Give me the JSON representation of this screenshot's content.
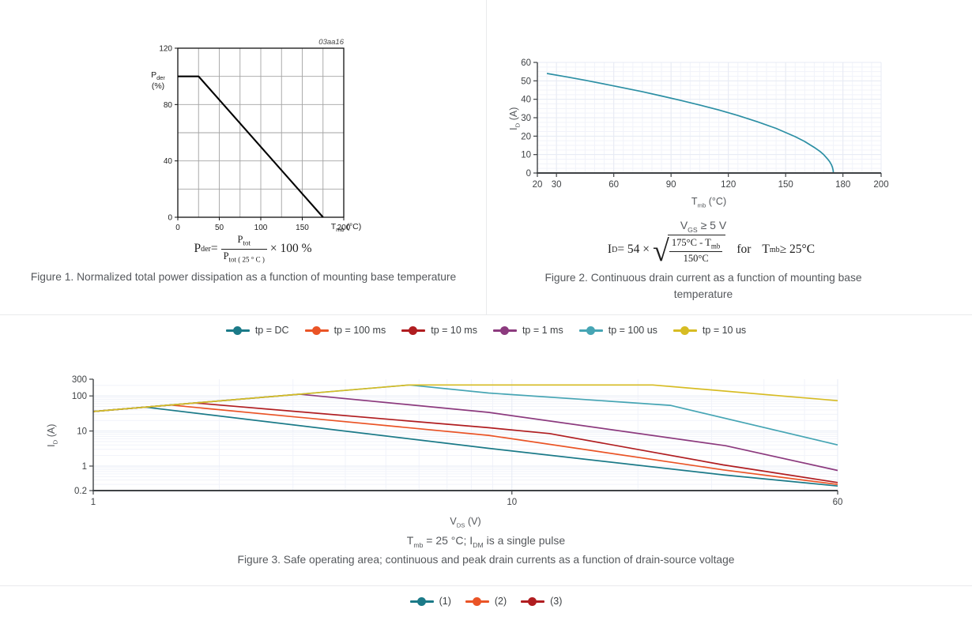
{
  "page": {
    "background": "#ffffff"
  },
  "figure1": {
    "watermark": "03aa16",
    "y_axis": {
      "base": "P",
      "sub": "der",
      "unit": "(%)"
    },
    "x_axis": {
      "base": "T",
      "sub": "mb",
      "unit": " (°C)"
    },
    "formula": {
      "lhs_base": "P",
      "lhs_sub": "der",
      "eq": " = ",
      "num_base": "P",
      "num_sub": "tot",
      "den_base": "P",
      "den_sub": "tot ( 25 ° C )",
      "tail": " × 100 %"
    },
    "caption": "Figure 1. Normalized total power dissipation as a function of mounting base temperature"
  },
  "figure2": {
    "condition": {
      "base": "V",
      "sub": "GS",
      "rest": " ≥ 5 V"
    },
    "formula": {
      "lhs_base": "I",
      "lhs_sub": "D",
      "eq": " = 54 × ",
      "radical": "√",
      "num_pre": "175°C - T",
      "num_sub": "mb",
      "den": "150°C",
      "for_word": "for",
      "cond_base": "T",
      "cond_sub": "mb",
      "cond_rest": " ≥ 25°C"
    },
    "caption": "Figure 2. Continuous drain current as a function of mounting base temperature",
    "x_axis": {
      "base": "T",
      "sub": "mb",
      "unit": " (°C)"
    },
    "y_axis": {
      "base": "I",
      "sub": "D",
      "unit": " (A)"
    }
  },
  "figure3": {
    "legend": [
      {
        "label": "tp = DC",
        "color": "#1b7a88"
      },
      {
        "label": "tp = 100 ms",
        "color": "#ea5426"
      },
      {
        "label": "tp = 10 ms",
        "color": "#b01d20"
      },
      {
        "label": "tp = 1 ms",
        "color": "#8c3a7e"
      },
      {
        "label": "tp = 100 us",
        "color": "#46a5b4"
      },
      {
        "label": "tp = 10 us",
        "color": "#d7bc23"
      }
    ],
    "note": {
      "t_base": "T",
      "t_sub": "mb",
      "mid": " = 25 °C; I",
      "i_sub": "DM",
      "tail": " is a single pulse"
    },
    "caption": "Figure 3. Safe operating area; continuous and peak drain currents as a function of drain-source voltage",
    "x_axis": {
      "base": "V",
      "sub": "DS",
      "unit": " (V)"
    },
    "y_axis": {
      "base": "I",
      "sub": "D",
      "unit": " (A)"
    }
  },
  "figure4": {
    "legend": [
      {
        "label": "(1)",
        "color": "#1b7a88"
      },
      {
        "label": "(2)",
        "color": "#ea5426"
      },
      {
        "label": "(3)",
        "color": "#b01d20"
      }
    ]
  },
  "chart_data": [
    {
      "id": "fig1",
      "type": "line",
      "style": "datasheet",
      "title": "Normalized total power dissipation as a function of mounting base temperature",
      "xlabel": "Tmb (°C)",
      "ylabel": "Pder (%)",
      "xlim": [
        0,
        200
      ],
      "ylim": [
        0,
        120
      ],
      "xticks": [
        0,
        50,
        100,
        150,
        200
      ],
      "yticks": [
        0,
        40,
        80,
        120
      ],
      "grid_x_step": 25,
      "grid_y_step": 20,
      "grid": "on",
      "watermark": "03aa16",
      "series": [
        {
          "name": "Pder",
          "color": "#000000",
          "points": [
            [
              0,
              100
            ],
            [
              25,
              100
            ],
            [
              175,
              0
            ]
          ]
        }
      ]
    },
    {
      "id": "fig2",
      "type": "line",
      "style": "web",
      "title": "Continuous drain current as a function of mounting base temperature",
      "xlabel": "Tmb (°C)",
      "ylabel": "ID (A)",
      "xlim": [
        20,
        200
      ],
      "ylim": [
        0,
        60
      ],
      "xticks": [
        20,
        30,
        60,
        90,
        120,
        150,
        180,
        200
      ],
      "yticks": [
        0,
        10,
        20,
        30,
        40,
        50,
        60
      ],
      "minor_x_step": 5,
      "minor_y_step": 2.5,
      "grid": "fine-mesh",
      "series": [
        {
          "name": "ID = 54·sqrt((175-Tmb)/150)",
          "color": "#2c8fa4",
          "points": [
            [
              25,
              54
            ],
            [
              35,
              52.2
            ],
            [
              45,
              50.3
            ],
            [
              55,
              48.3
            ],
            [
              65,
              46.2
            ],
            [
              75,
              44.1
            ],
            [
              85,
              41.8
            ],
            [
              95,
              39.4
            ],
            [
              105,
              36.9
            ],
            [
              115,
              34.2
            ],
            [
              125,
              31.2
            ],
            [
              135,
              27.9
            ],
            [
              145,
              24.2
            ],
            [
              155,
              19.7
            ],
            [
              160,
              17.1
            ],
            [
              165,
              13.9
            ],
            [
              168,
              11.7
            ],
            [
              170,
              9.9
            ],
            [
              172,
              7.6
            ],
            [
              173,
              6.2
            ],
            [
              174,
              4.4
            ],
            [
              174.5,
              3.1
            ],
            [
              174.9,
              1.4
            ],
            [
              175,
              0
            ]
          ]
        }
      ]
    },
    {
      "id": "fig3",
      "type": "line",
      "style": "web",
      "title": "Safe operating area; continuous and peak drain currents as a function of drain-source voltage",
      "xlabel": "VDS (V)",
      "ylabel": "ID (A)",
      "x_scale": "log",
      "y_scale": "log",
      "xlim": [
        1,
        60
      ],
      "ylim": [
        0.2,
        300
      ],
      "xticks": [
        1,
        10,
        60
      ],
      "yticks": [
        0.2,
        1,
        10,
        100,
        300
      ],
      "minor_x": [
        2,
        3,
        4,
        5,
        6,
        7,
        8,
        9,
        20,
        30,
        40,
        50
      ],
      "major_x": [
        10
      ],
      "minor_y": [
        0.3,
        0.4,
        0.5,
        0.6,
        0.7,
        0.8,
        0.9,
        2,
        3,
        4,
        5,
        6,
        7,
        8,
        9,
        20,
        30,
        40,
        50,
        60,
        70,
        80,
        90,
        200
      ],
      "major_y": [
        1,
        10,
        100
      ],
      "legend_position": "top-center",
      "grid": "on",
      "series": [
        {
          "name": "tp = DC",
          "color": "#1b7a88",
          "points": [
            [
              1,
              36
            ],
            [
              1.33,
              48
            ],
            [
              8.8,
              3.2
            ],
            [
              32,
              0.56
            ],
            [
              60,
              0.27
            ]
          ]
        },
        {
          "name": "tp = 100 ms",
          "color": "#ea5426",
          "points": [
            [
              1,
              36
            ],
            [
              1.53,
              55
            ],
            [
              8.8,
              7.5
            ],
            [
              32,
              0.78
            ],
            [
              60,
              0.3
            ]
          ]
        },
        {
          "name": "tp = 10 ms",
          "color": "#b01d20",
          "points": [
            [
              1,
              36
            ],
            [
              1.75,
              63
            ],
            [
              8.8,
              12.4
            ],
            [
              12.3,
              8.45
            ],
            [
              32,
              1.08
            ],
            [
              60,
              0.34
            ]
          ]
        },
        {
          "name": "tp = 1 ms",
          "color": "#8c3a7e",
          "points": [
            [
              1,
              36
            ],
            [
              3.11,
              112
            ],
            [
              8.8,
              34
            ],
            [
              32.4,
              3.8
            ],
            [
              60,
              0.75
            ]
          ]
        },
        {
          "name": "tp = 100 us",
          "color": "#46a5b4",
          "points": [
            [
              1,
              36
            ],
            [
              5.69,
              205
            ],
            [
              8.8,
              121
            ],
            [
              23.9,
              54
            ],
            [
              60,
              4.0
            ]
          ]
        },
        {
          "name": "tp = 10 us",
          "color": "#d7bc23",
          "points": [
            [
              1,
              36
            ],
            [
              5.69,
              205
            ],
            [
              21.7,
              205
            ],
            [
              60,
              73
            ]
          ]
        }
      ]
    }
  ]
}
